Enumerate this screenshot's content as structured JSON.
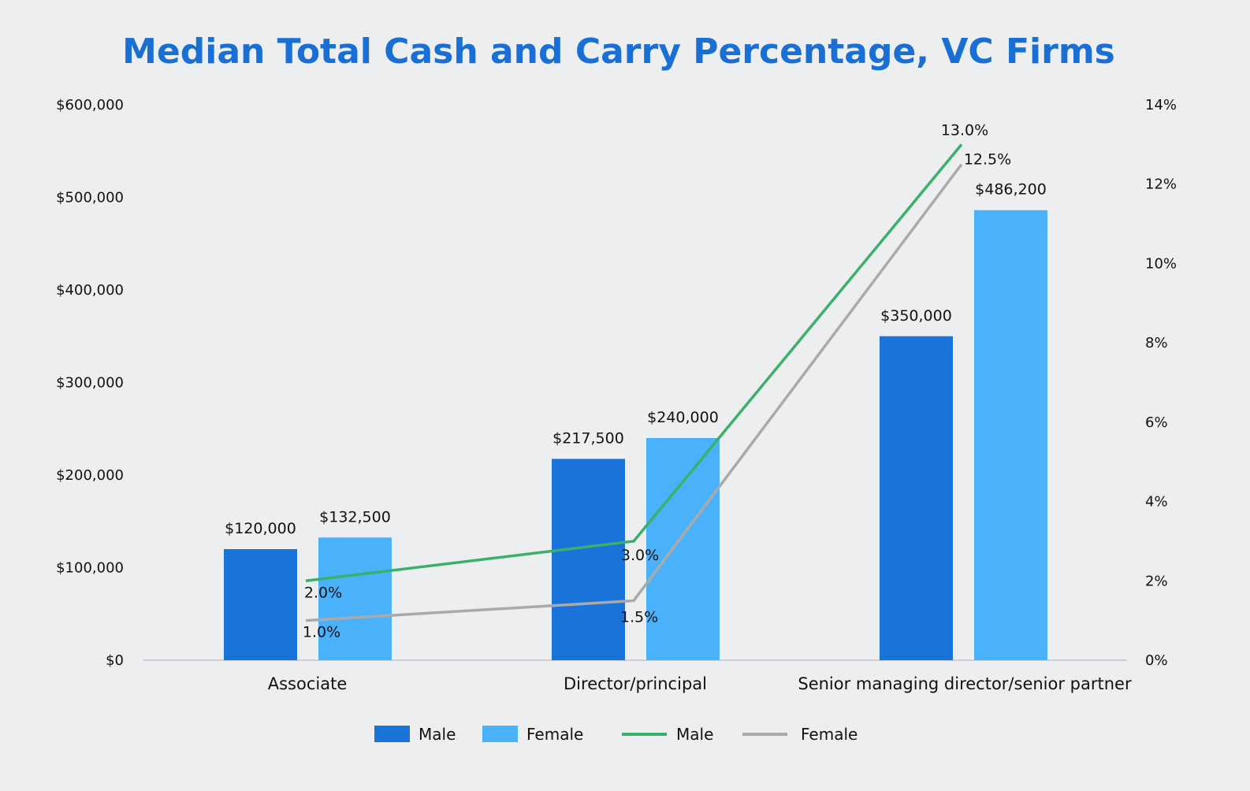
{
  "chart_data": {
    "type": "bar+line",
    "title": "Median Total Cash and Carry Percentage, VC Firms",
    "categories": [
      "Associate",
      "Director/principal",
      "Senior managing director/senior partner"
    ],
    "bar_series": [
      {
        "name": "Male",
        "values": [
          120000,
          217500,
          350000
        ],
        "labels": [
          "$120,000",
          "$217,500",
          "$350,000"
        ],
        "color": "#1a73d8"
      },
      {
        "name": "Female",
        "values": [
          132500,
          240000,
          486200
        ],
        "labels": [
          "$132,500",
          "$240,000",
          "$486,200"
        ],
        "color": "#4ab1fb"
      }
    ],
    "line_series": [
      {
        "name": "Male",
        "values": [
          2.0,
          3.0,
          13.0
        ],
        "labels": [
          "2.0%",
          "3.0%",
          "13.0%"
        ],
        "color": "#3bb06a"
      },
      {
        "name": "Female",
        "values": [
          1.0,
          1.5,
          12.5
        ],
        "labels": [
          "1.0%",
          "1.5%",
          "12.5%"
        ],
        "color": "#aaaaaa"
      }
    ],
    "left_axis": {
      "ylim": [
        0,
        600000
      ],
      "ticks": [
        "$0",
        "$100,000",
        "$200,000",
        "$300,000",
        "$400,000",
        "$500,000",
        "$600,000"
      ]
    },
    "right_axis": {
      "ylim": [
        0,
        14
      ],
      "ticks": [
        "0%",
        "2%",
        "4%",
        "6%",
        "8%",
        "10%",
        "12%",
        "14%"
      ]
    },
    "grid": false,
    "legend_placement": "bottom",
    "title_color": "#1a6fd4",
    "background": "#eceef0"
  }
}
